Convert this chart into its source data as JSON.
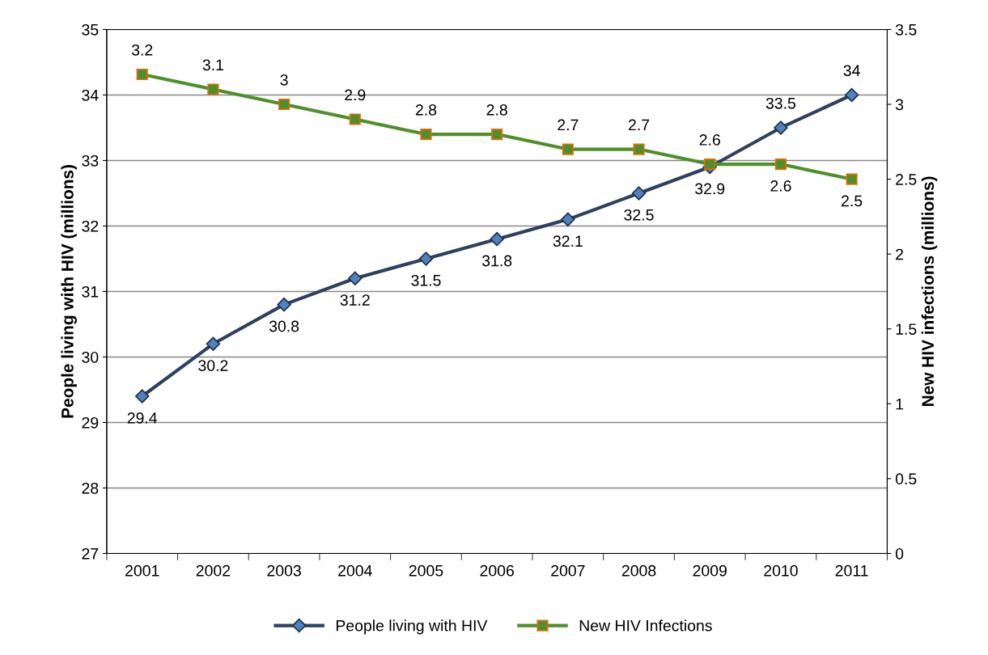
{
  "chart_data": {
    "type": "line",
    "categories": [
      "2001",
      "2002",
      "2003",
      "2004",
      "2005",
      "2006",
      "2007",
      "2008",
      "2009",
      "2010",
      "2011"
    ],
    "series": [
      {
        "name": "People living with HIV",
        "color": "#2f3f5c",
        "marker": "diamond",
        "values": [
          29.4,
          30.2,
          30.8,
          31.2,
          31.5,
          31.8,
          32.1,
          32.5,
          32.9,
          33.5,
          34
        ]
      },
      {
        "name": "New HIV Infections",
        "color": "#4f8f2a",
        "marker": "square",
        "axis": "y2",
        "values": [
          3.2,
          3.1,
          3,
          2.9,
          2.8,
          2.8,
          2.7,
          2.7,
          2.6,
          2.6,
          2.5
        ]
      }
    ],
    "ylabel": "People living with HIV (millions)",
    "y2label": "New HIV infections (millions)",
    "ylim": [
      27,
      35
    ],
    "yticks": [
      27,
      28,
      29,
      30,
      31,
      32,
      33,
      34,
      35
    ],
    "y2lim": [
      0,
      3.5
    ],
    "y2ticks": [
      0,
      0.5,
      1,
      1.5,
      2,
      2.5,
      3,
      3.5
    ],
    "grid": "y",
    "legend": "bottom",
    "data_labels": true
  }
}
